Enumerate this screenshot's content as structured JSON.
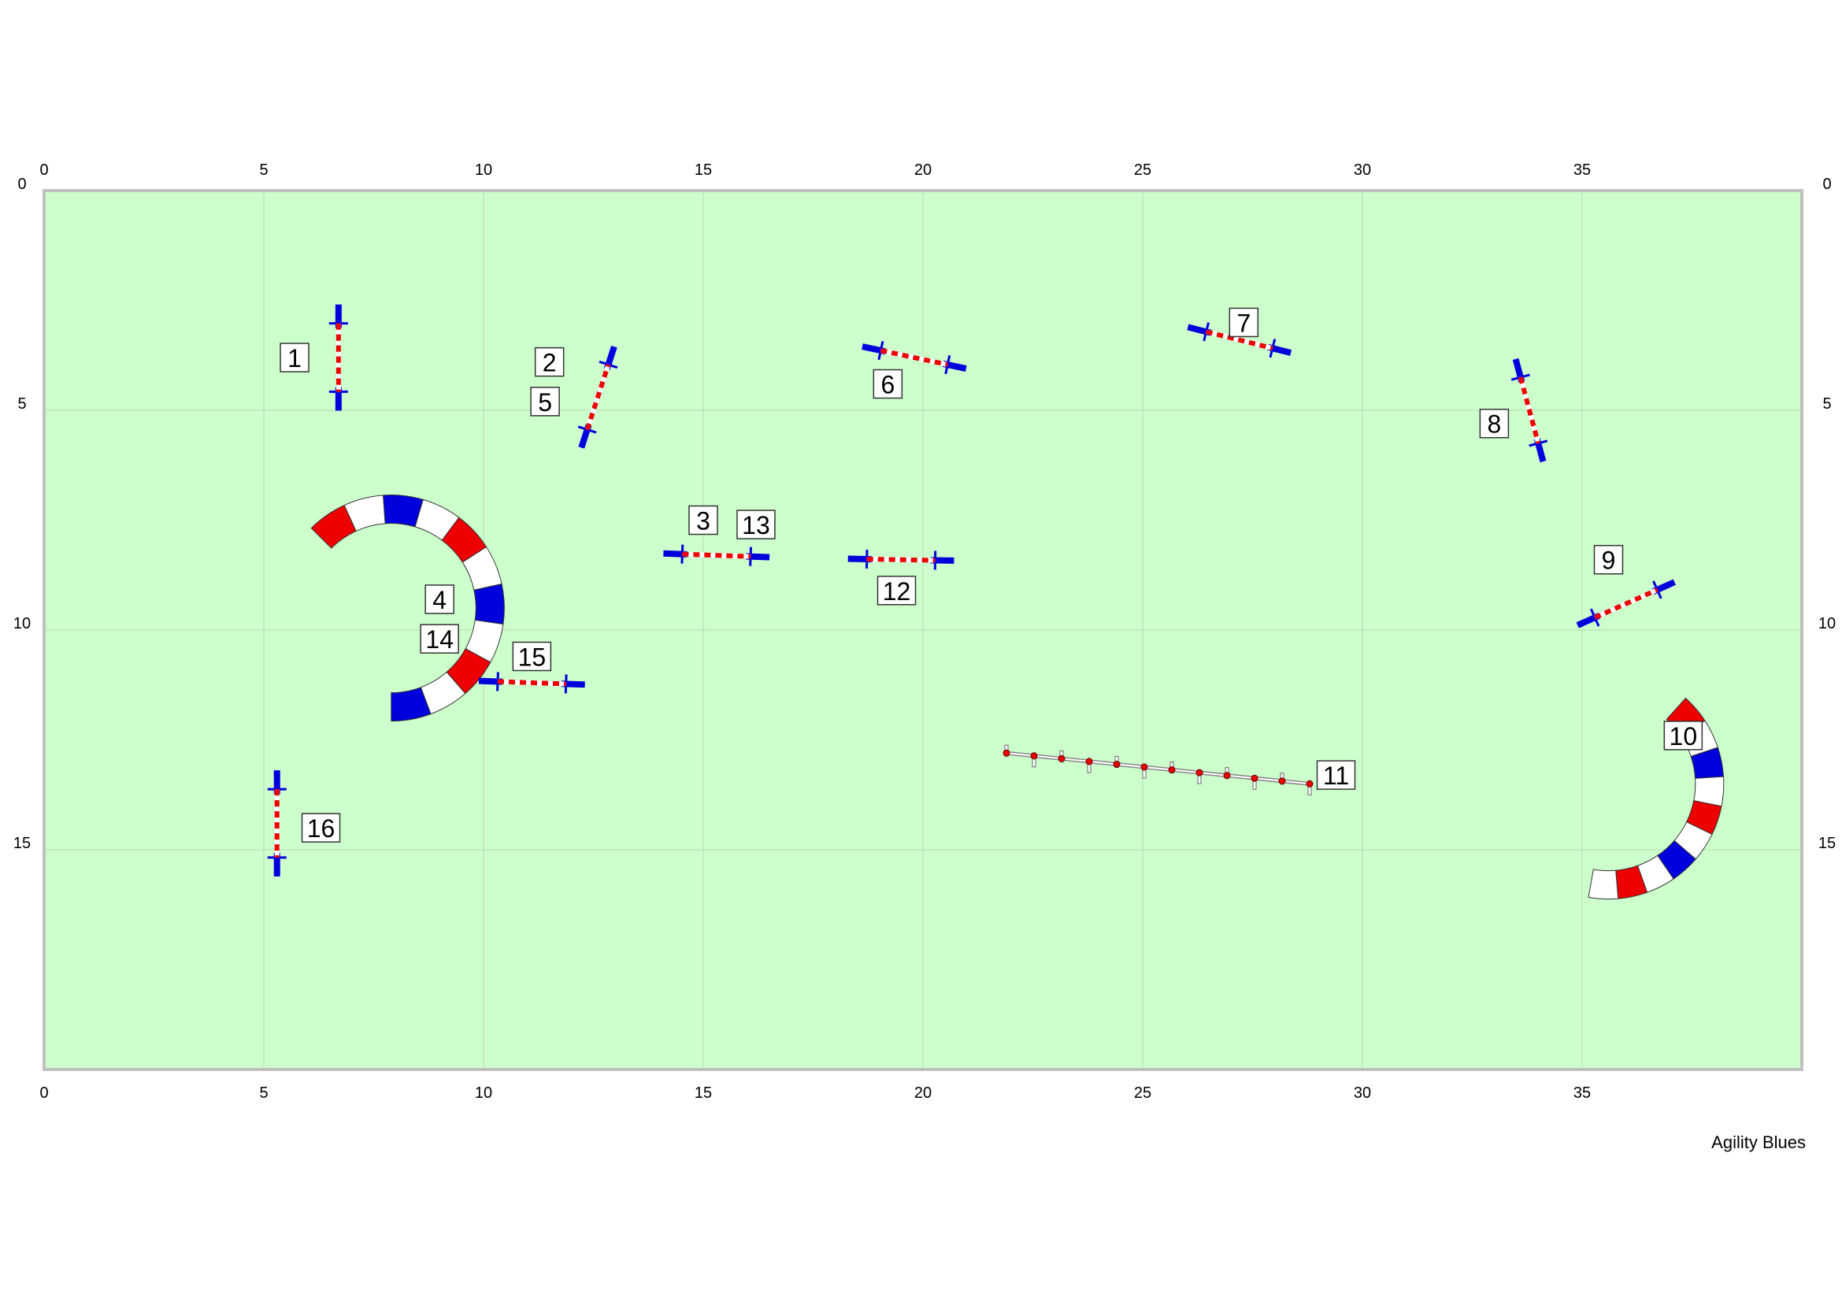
{
  "ring": {
    "x_ticks": [
      "0",
      "5",
      "10",
      "15",
      "20",
      "25",
      "30",
      "35"
    ],
    "y_ticks": [
      "0",
      "5",
      "10",
      "15"
    ],
    "background_color": "#ccffcc",
    "border_color": "#c0c0c0",
    "grid_color": "#b8d8b8"
  },
  "colors": {
    "blue": "#0000dd",
    "red": "#ee0000",
    "white": "#ffffff"
  },
  "credit": "Agility Blues",
  "obstacles": [
    {
      "type": "jump",
      "name": "jump-1",
      "center": [
        6.7,
        3.8
      ],
      "angle": 90,
      "length": 2.2
    },
    {
      "type": "jump",
      "name": "jump-2-5",
      "center": [
        12.6,
        4.7
      ],
      "angle": -72,
      "length": 2.2
    },
    {
      "type": "jump",
      "name": "jump-3-13",
      "center": [
        15.3,
        8.3
      ],
      "angle": 2,
      "length": 2.2
    },
    {
      "type": "tunnel",
      "name": "tunnel-4-14",
      "center": [
        7.9,
        9.5
      ],
      "radius": 2.25,
      "start": -135,
      "end": 90,
      "segments": 11
    },
    {
      "type": "jump",
      "name": "jump-6",
      "center": [
        19.8,
        3.8
      ],
      "angle": 12,
      "length": 2.2
    },
    {
      "type": "jump",
      "name": "jump-7",
      "center": [
        27.2,
        3.4
      ],
      "angle": 14,
      "length": 2.2
    },
    {
      "type": "jump",
      "name": "jump-8",
      "center": [
        33.8,
        5.0
      ],
      "angle": 75,
      "length": 2.2
    },
    {
      "type": "jump",
      "name": "jump-9",
      "center": [
        36.0,
        9.4
      ],
      "angle": -24,
      "length": 2.2
    },
    {
      "type": "tunnel",
      "name": "tunnel-10",
      "center": [
        35.6,
        13.5
      ],
      "radius": 2.3,
      "start": -48,
      "end": 100,
      "segments": 10
    },
    {
      "type": "weaves",
      "name": "weave-poles-11",
      "from": [
        21.9,
        12.8
      ],
      "to": [
        28.8,
        13.5
      ],
      "poles": 12
    },
    {
      "type": "jump",
      "name": "jump-12",
      "center": [
        19.5,
        8.4
      ],
      "angle": 1,
      "length": 2.2
    },
    {
      "type": "jump",
      "name": "jump-15",
      "center": [
        11.1,
        11.2
      ],
      "angle": 2,
      "length": 2.2
    },
    {
      "type": "jump",
      "name": "jump-16",
      "center": [
        5.3,
        14.4
      ],
      "angle": 90,
      "length": 2.2
    }
  ],
  "numbers": [
    {
      "label": "1",
      "pos": [
        5.7,
        3.8
      ]
    },
    {
      "label": "2",
      "pos": [
        11.5,
        3.9
      ]
    },
    {
      "label": "5",
      "pos": [
        11.4,
        4.8
      ]
    },
    {
      "label": "3",
      "pos": [
        15.0,
        7.5
      ]
    },
    {
      "label": "13",
      "pos": [
        16.2,
        7.6
      ]
    },
    {
      "label": "4",
      "pos": [
        9.0,
        9.3
      ]
    },
    {
      "label": "14",
      "pos": [
        9.0,
        10.2
      ]
    },
    {
      "label": "6",
      "pos": [
        19.2,
        4.4
      ]
    },
    {
      "label": "7",
      "pos": [
        27.3,
        3.0
      ]
    },
    {
      "label": "8",
      "pos": [
        33.0,
        5.3
      ]
    },
    {
      "label": "9",
      "pos": [
        35.6,
        8.4
      ]
    },
    {
      "label": "10",
      "pos": [
        37.3,
        12.4
      ]
    },
    {
      "label": "11",
      "pos": [
        29.4,
        13.3
      ]
    },
    {
      "label": "12",
      "pos": [
        19.4,
        9.1
      ]
    },
    {
      "label": "15",
      "pos": [
        11.1,
        10.6
      ]
    },
    {
      "label": "16",
      "pos": [
        6.3,
        14.5
      ]
    }
  ]
}
